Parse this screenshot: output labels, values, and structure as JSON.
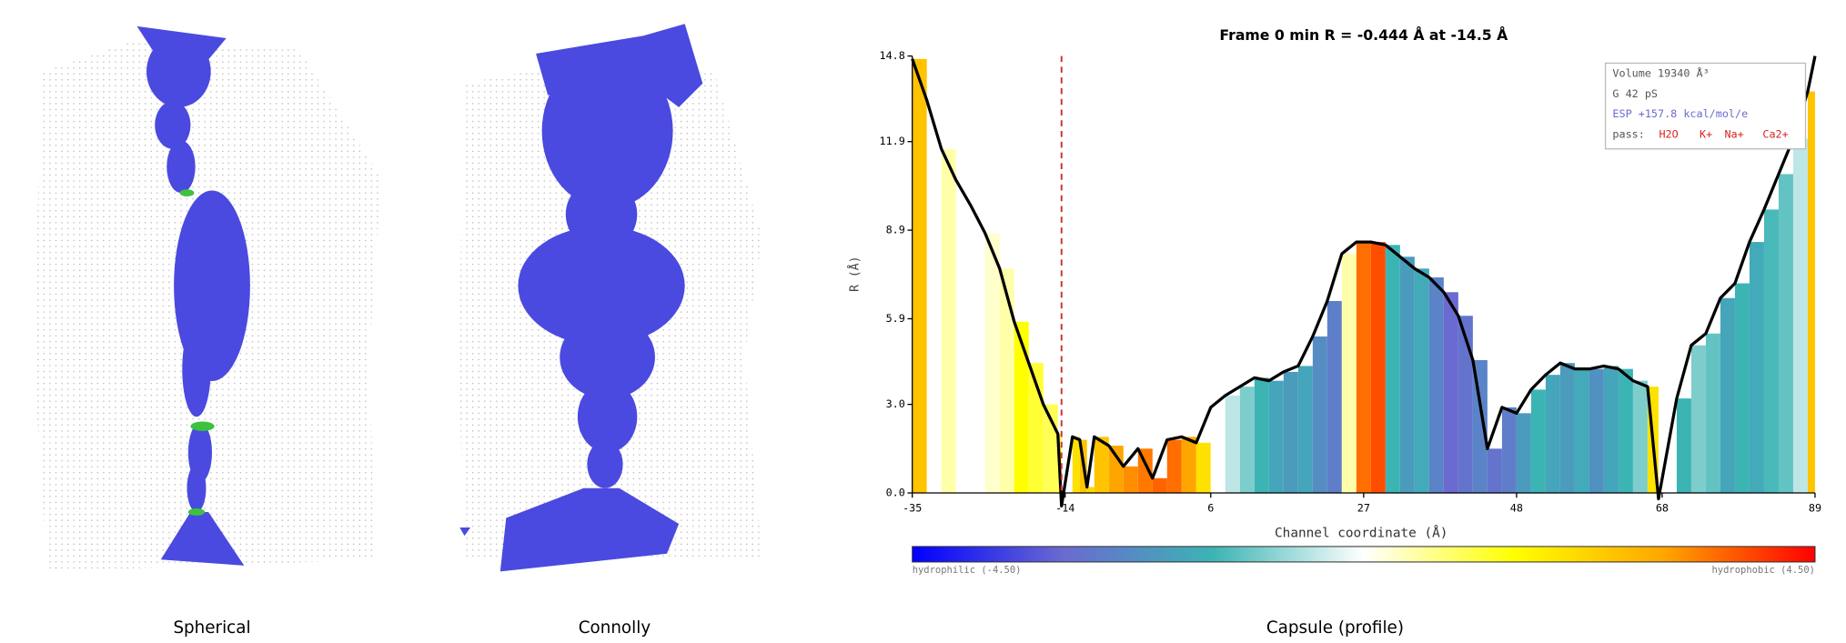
{
  "panels": [
    {
      "label": "Spherical"
    },
    {
      "label": "Connolly"
    },
    {
      "label": "Capsule (profile)"
    }
  ],
  "chart_data": {
    "type": "line",
    "title": "Frame 0    min R = -0.444 Å at -14.5 Å",
    "x_label": "Channel coordinate (Å)",
    "y_label": "R (Å)",
    "x": [
      -35,
      -33,
      -31,
      -29,
      -27,
      -25,
      -23,
      -21,
      -19,
      -17,
      -15,
      -14.5,
      -13,
      -12,
      -11,
      -10,
      -8,
      -6,
      -4,
      -2,
      0,
      2,
      4,
      6,
      8,
      10,
      12,
      14,
      16,
      18,
      20,
      22,
      24,
      26,
      28,
      30,
      32,
      34,
      36,
      38,
      40,
      42,
      44,
      46,
      48,
      50,
      52,
      54,
      56,
      58,
      60,
      62,
      64,
      66,
      67.5,
      70,
      72,
      74,
      76,
      78,
      80,
      82,
      84,
      86,
      88,
      89
    ],
    "values": [
      14.7,
      13.3,
      11.65,
      10.6,
      9.75,
      8.8,
      7.6,
      5.8,
      4.4,
      3.0,
      2.0,
      -0.444,
      1.9,
      1.8,
      0.2,
      1.9,
      1.6,
      0.9,
      1.5,
      0.5,
      1.8,
      1.9,
      1.7,
      2.9,
      3.3,
      3.6,
      3.9,
      3.8,
      4.1,
      4.3,
      5.3,
      6.5,
      8.1,
      8.5,
      8.5,
      8.4,
      8.0,
      7.6,
      7.3,
      6.8,
      6.0,
      4.5,
      1.5,
      2.9,
      2.7,
      3.5,
      4.0,
      4.4,
      4.2,
      4.2,
      4.3,
      4.2,
      3.8,
      3.6,
      -0.2,
      3.2,
      5.0,
      5.4,
      6.6,
      7.1,
      8.5,
      9.6,
      10.8,
      12.0,
      13.6,
      14.8
    ],
    "hydrophobicity": [
      2.5,
      0,
      0.5,
      0,
      0,
      0.3,
      0.5,
      1.5,
      1.2,
      1,
      1.2,
      2,
      2,
      2.5,
      2.2,
      2.5,
      3,
      3.2,
      3.4,
      3.6,
      3.5,
      3,
      2,
      0,
      -0.5,
      -1,
      -1.5,
      -1.8,
      -2,
      -1.8,
      -2.3,
      -2.6,
      0.5,
      3.5,
      3.8,
      -1.5,
      -2,
      -1.7,
      -2.5,
      -3,
      -2.8,
      -2.5,
      -2.8,
      -2.6,
      -2,
      -1.5,
      -1.8,
      -2,
      -1.7,
      -2.2,
      -1.8,
      -1.5,
      -1,
      2,
      0,
      -1.5,
      -1,
      -1.2,
      -1.8,
      -1.5,
      -1.7,
      -1.4,
      -1.2,
      -0.5,
      2.5,
      0
    ],
    "color": "#000000",
    "marker_x": -14.5,
    "marker_color": "#cc3333",
    "xlim": [
      -35,
      89
    ],
    "xticks": [
      -35,
      -14,
      6,
      27,
      48,
      68,
      89
    ],
    "ylim": [
      0,
      14.8
    ],
    "yticks": [
      {
        "value": 0,
        "label": "0.0"
      },
      {
        "value": 3,
        "label": "3.0"
      },
      5.9,
      8.9,
      11.9,
      14.8
    ],
    "clim": [
      -4.5,
      4.5
    ],
    "colormap": [
      "#0000ff",
      "#6a6ad0",
      "#3cb4b4",
      "#ffffff",
      "#ffff00",
      "#ffa500",
      "#ff0000"
    ],
    "colorbar_left": "hydrophilic (-4.50)",
    "colorbar_right": "hydrophobic (4.50)",
    "info": {
      "volume": "Volume 19340 Å³",
      "conductance": "G  42 pS",
      "esp": "ESP +157.8 kcal/mol/e",
      "pass_label": "pass:",
      "pass": [
        "H2O",
        "K+",
        "Na+",
        "Ca2+"
      ]
    }
  }
}
